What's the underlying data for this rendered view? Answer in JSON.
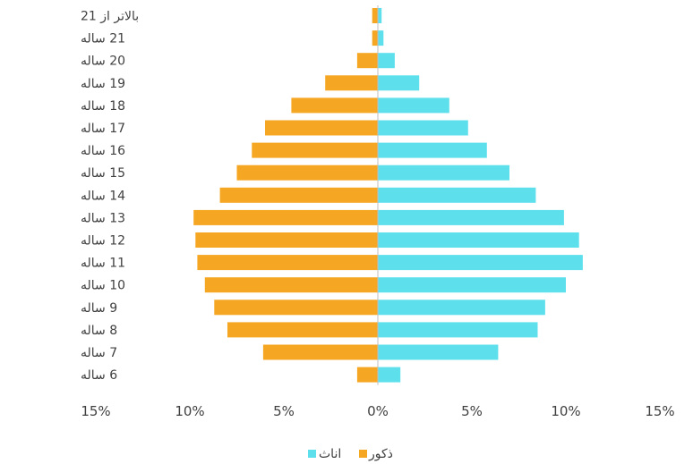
{
  "chart_data": {
    "type": "bar",
    "orientation": "horizontal",
    "layout": "population-pyramid",
    "categories": [
      "6 ساله",
      "7 ساله",
      "8 ساله",
      "9 ساله",
      "10 ساله",
      "11 ساله",
      "12 ساله",
      "13 ساله",
      "14 ساله",
      "15 ساله",
      "16 ساله",
      "17 ساله",
      "18 ساله",
      "19 ساله",
      "20 ساله",
      "21 ساله",
      "بالاتر از 21"
    ],
    "series": [
      {
        "name": "ذکور",
        "color": "#F5A623",
        "side": "left",
        "values": [
          1.1,
          6.1,
          8.0,
          8.7,
          9.2,
          9.6,
          9.7,
          9.8,
          8.4,
          7.5,
          6.7,
          6.0,
          4.6,
          2.8,
          1.1,
          0.3,
          0.3
        ]
      },
      {
        "name": "اناث",
        "color": "#5EE0EC",
        "side": "right",
        "values": [
          1.2,
          6.4,
          8.5,
          8.9,
          10.0,
          10.9,
          10.7,
          9.9,
          8.4,
          7.0,
          5.8,
          4.8,
          3.8,
          2.2,
          0.9,
          0.3,
          0.2
        ]
      }
    ],
    "xlim": [
      -15,
      15
    ],
    "xticks": [
      "15%",
      "10%",
      "5%",
      "0%",
      "5%",
      "10%",
      "15%"
    ],
    "xtick_values": [
      -15,
      -10,
      -5,
      0,
      5,
      10,
      15
    ],
    "grid": false,
    "legend": "bottom-center"
  }
}
